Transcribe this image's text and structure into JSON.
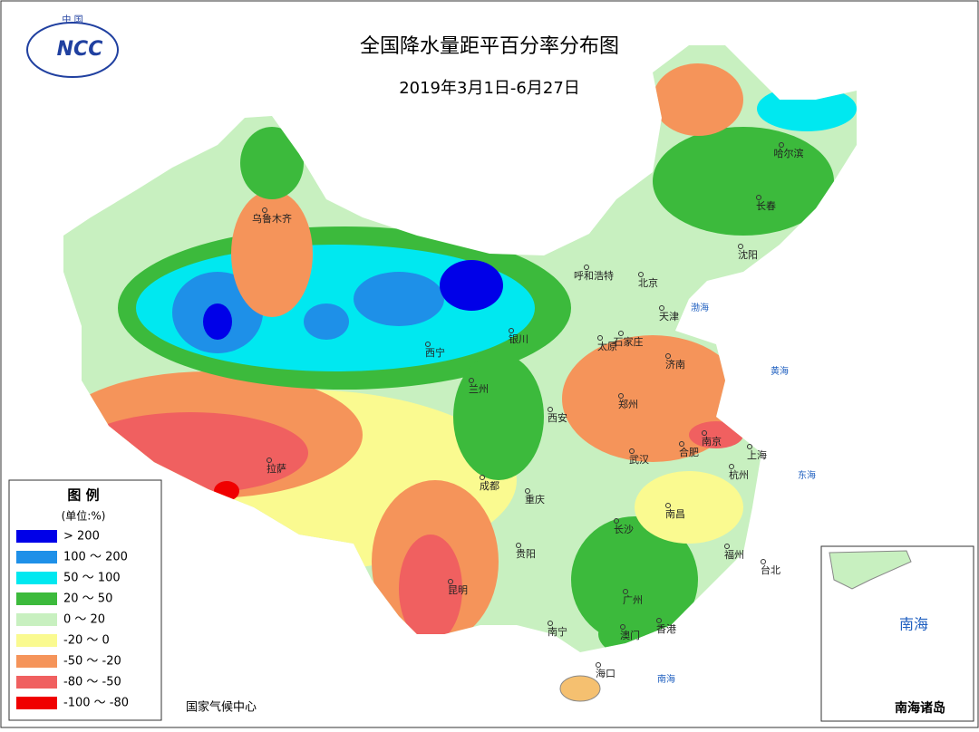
{
  "header": {
    "title": "全国降水量距平百分率分布图",
    "subtitle": "2019年3月1日-6月27日"
  },
  "logo": {
    "top": "中 国",
    "mark": "NCC"
  },
  "legend": {
    "title": "图 例",
    "unit": "(单位:%)",
    "items": [
      {
        "label": "> 200",
        "color": "#0000e8"
      },
      {
        "label": "100 ～ 200",
        "color": "#1e90e8"
      },
      {
        "label": "50 ～ 100",
        "color": "#00e8f0"
      },
      {
        "label": "20 ～ 50",
        "color": "#3cba3c"
      },
      {
        "label": "0 ～ 20",
        "color": "#c8f0c0"
      },
      {
        "label": "-20 ～ 0",
        "color": "#fafa90"
      },
      {
        "label": "-50 ～ -20",
        "color": "#f5945a"
      },
      {
        "label": "-80 ～ -50",
        "color": "#f06060"
      },
      {
        "label": "-100 ～ -80",
        "color": "#f00000"
      }
    ]
  },
  "cities": [
    "乌鲁木齐",
    "呼和浩特",
    "北京",
    "天津",
    "石家庄",
    "太原",
    "济南",
    "银川",
    "西宁",
    "兰州",
    "西安",
    "郑州",
    "合肥",
    "南京",
    "上海",
    "武汉",
    "杭州",
    "拉萨",
    "成都",
    "重庆",
    "长沙",
    "南昌",
    "贵阳",
    "福州",
    "台北",
    "昆明",
    "广州",
    "南宁",
    "香港",
    "澳门",
    "海口",
    "哈尔滨",
    "长春",
    "沈阳"
  ],
  "seas": [
    "渤海",
    "黄海",
    "东海",
    "南海"
  ],
  "credit": "国家气候中心",
  "inset": {
    "title": "南海诸岛",
    "sea": "南海"
  }
}
